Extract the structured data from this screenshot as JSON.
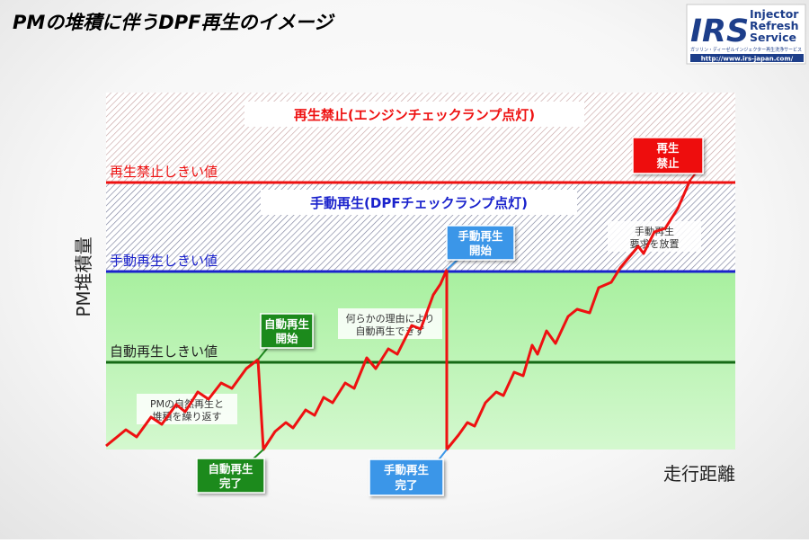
{
  "title": "PMの堆積に伴うDPF再生のイメージ",
  "logo": {
    "mark": "IRS",
    "line1": "Injector",
    "line2": "Refresh",
    "line3": "Service",
    "tagline": "ガソリン・ディーゼルインジェクター再生洗浄サービス",
    "url": "http://www.irs-japan.com/"
  },
  "axes": {
    "ylabel": "PM堆積量",
    "xlabel": "走行距離"
  },
  "zones": {
    "prohibit_label": "再生禁止(エンジンチェックランプ点灯)",
    "manual_label": "手動再生(DPFチェックランプ点灯)"
  },
  "thresholds": {
    "prohibit": "再生禁止しきい値",
    "manual": "手動再生しきい値",
    "auto": "自動再生しきい値"
  },
  "callouts": {
    "auto_start_1": "自動再生",
    "auto_start_2": "開始",
    "auto_done_1": "自動再生",
    "auto_done_2": "完了",
    "manual_start_1": "手動再生",
    "manual_start_2": "開始",
    "manual_done_1": "手動再生",
    "manual_done_2": "完了",
    "prohibit_1": "再生",
    "prohibit_2": "禁止"
  },
  "notes": {
    "natural_1": "PMの自然再生と",
    "natural_2": "堆積を繰り返す",
    "fail_1": "何らかの理由により",
    "fail_2": "自動再生できず",
    "ignore_1": "手動再生",
    "ignore_2": "要求を放置"
  },
  "colors": {
    "prohibit_line": "#ee1111",
    "manual_line": "#1a22cc",
    "auto_line": "#166a16",
    "pm_curve": "#ee1111",
    "safe_zone": "#aef2a8",
    "auto_box": "#1e8a1e",
    "manual_box": "#3a96e8",
    "prohibit_box": "#ee1111"
  }
}
